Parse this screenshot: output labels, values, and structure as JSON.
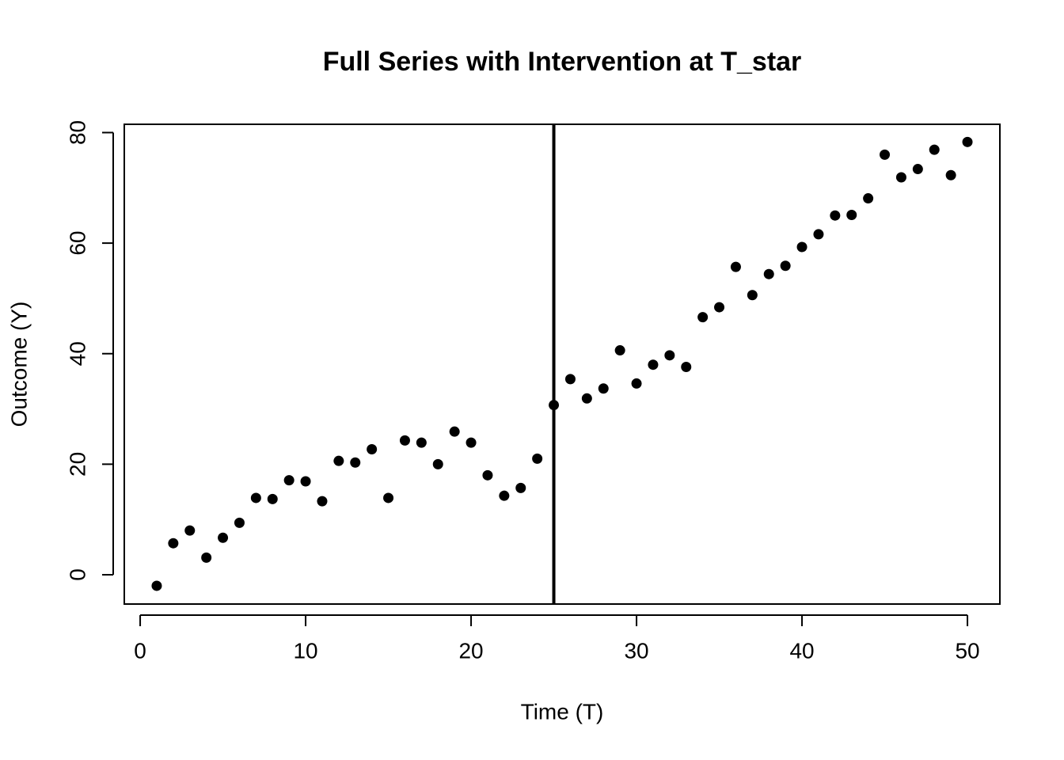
{
  "chart_data": {
    "type": "scatter",
    "title": "Full Series with Intervention at T_star",
    "x_label": "Time (T)",
    "y_label": "Outcome (Y)",
    "x": [
      1,
      2,
      3,
      4,
      5,
      6,
      7,
      8,
      9,
      10,
      11,
      12,
      13,
      14,
      15,
      16,
      17,
      18,
      19,
      20,
      21,
      22,
      23,
      24,
      25,
      26,
      27,
      28,
      29,
      30,
      31,
      32,
      33,
      34,
      35,
      36,
      37,
      38,
      39,
      40,
      41,
      42,
      43,
      44,
      45,
      46,
      47,
      48,
      49,
      50
    ],
    "series": [
      {
        "color": "#000000",
        "values": [
          -2.0,
          5.7,
          8.0,
          3.1,
          6.7,
          9.4,
          13.9,
          13.7,
          17.1,
          16.9,
          13.3,
          20.6,
          20.3,
          22.7,
          13.9,
          24.3,
          23.9,
          20.0,
          25.9,
          23.9,
          18.0,
          14.3,
          15.7,
          21.0,
          30.7,
          35.4,
          31.9,
          33.7,
          40.6,
          34.6,
          38.0,
          39.7,
          37.6,
          46.6,
          48.4,
          55.7,
          50.6,
          54.4,
          55.9,
          59.3,
          61.6,
          65.0,
          65.1,
          68.1,
          76.0,
          71.9,
          73.4,
          76.9,
          72.3,
          78.3
        ]
      }
    ],
    "vline": 25,
    "xlim": [
      -0.96,
      51.96
    ],
    "ylim": [
      -5.3,
      81.5
    ],
    "xticks": [
      0,
      10,
      20,
      30,
      40,
      50
    ],
    "yticks": [
      0,
      20,
      40,
      60,
      80
    ]
  }
}
